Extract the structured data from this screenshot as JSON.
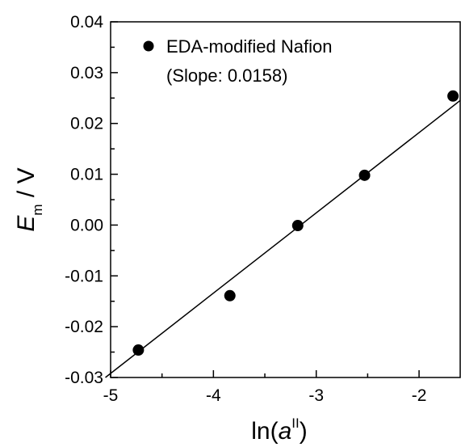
{
  "chart_data": {
    "type": "scatter",
    "xlim": [
      -5,
      -1.6
    ],
    "ylim": [
      -0.03,
      0.04
    ],
    "x_ticks": [
      -5,
      -4,
      -3,
      -2
    ],
    "x_tick_labels": [
      "-5",
      "-4",
      "-3",
      "-2"
    ],
    "y_ticks": [
      -0.03,
      -0.02,
      -0.01,
      0.0,
      0.01,
      0.02,
      0.03,
      0.04
    ],
    "y_tick_labels": [
      "-0.03",
      "-0.02",
      "-0.01",
      "0.00",
      "0.01",
      "0.02",
      "0.03",
      "0.04"
    ],
    "xlabel": {
      "prefix": "ln(",
      "italic": "a",
      "superscript": "II",
      "suffix": ")"
    },
    "ylabel": {
      "italic": "E",
      "subscript": "m",
      "suffix": " / V"
    },
    "grid": false,
    "legend_position": "top-left",
    "series": [
      {
        "name": "EDA-modified Nafion",
        "note": "(Slope: 0.0158)",
        "marker_color": "#000000",
        "x": [
          -4.73,
          -3.84,
          -3.18,
          -2.53,
          -1.67
        ],
        "y": [
          -0.0246,
          -0.0139,
          -0.0001,
          0.0098,
          0.0254
        ]
      }
    ],
    "fit_line": {
      "slope": 0.0158,
      "intercept": 0.0498,
      "color": "#000000"
    }
  }
}
